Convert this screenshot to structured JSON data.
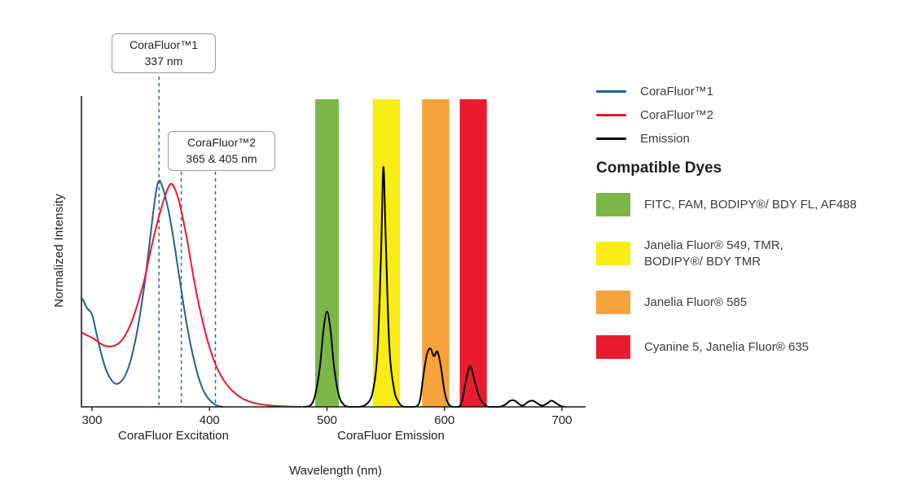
{
  "chart_data": {
    "type": "line",
    "title": "",
    "xlabel": "Wavelength (nm)",
    "ylabel": "Normalized Intensity",
    "x_section_labels": {
      "excitation": "CoraFluor Excitation",
      "emission": "CoraFluor Emission"
    },
    "xlim": [
      300,
      720
    ],
    "ylim": [
      0,
      1
    ],
    "x_ticks": [
      300,
      400,
      500,
      600,
      700
    ],
    "grid": false,
    "legend_position": "right",
    "marker_line_color": "#2d6a9f",
    "annotations": [
      {
        "title": "CoraFluor™1",
        "value": "337 nm",
        "marker_nm": [
          357
        ]
      },
      {
        "title": "CoraFluor™2",
        "value": "365 & 405 nm",
        "marker_nm": [
          376,
          405
        ]
      }
    ],
    "bands": [
      {
        "range_nm": [
          490,
          510
        ],
        "color": "#7ab648",
        "dyes": "FITC, FAM, BODIPY®/ BDY FL, AF488"
      },
      {
        "range_nm": [
          539,
          562
        ],
        "color": "#f7ec13",
        "dyes": "Janelia Fluor® 549, TMR, BODIPY®/ BDY TMR"
      },
      {
        "range_nm": [
          581,
          604
        ],
        "color": "#f6a23a",
        "dyes": "Janelia Fluor® 585"
      },
      {
        "range_nm": [
          613,
          636
        ],
        "color": "#e81c2e",
        "dyes": "Cyanine 5, Janelia Fluor® 635"
      }
    ],
    "series": [
      {
        "name": "CoraFluor™1",
        "color": "#235f94",
        "points": [
          [
            292,
            0.35
          ],
          [
            296,
            0.32
          ],
          [
            300,
            0.3
          ],
          [
            304,
            0.235
          ],
          [
            308,
            0.17
          ],
          [
            312,
            0.12
          ],
          [
            316,
            0.09
          ],
          [
            320,
            0.075
          ],
          [
            324,
            0.08
          ],
          [
            328,
            0.1
          ],
          [
            332,
            0.14
          ],
          [
            336,
            0.2
          ],
          [
            340,
            0.28
          ],
          [
            344,
            0.38
          ],
          [
            348,
            0.5
          ],
          [
            352,
            0.63
          ],
          [
            355,
            0.71
          ],
          [
            357,
            0.735
          ],
          [
            359,
            0.725
          ],
          [
            362,
            0.69
          ],
          [
            366,
            0.62
          ],
          [
            370,
            0.53
          ],
          [
            374,
            0.43
          ],
          [
            378,
            0.33
          ],
          [
            382,
            0.24
          ],
          [
            386,
            0.165
          ],
          [
            390,
            0.105
          ],
          [
            394,
            0.06
          ],
          [
            398,
            0.032
          ],
          [
            402,
            0.015
          ],
          [
            406,
            0.005
          ],
          [
            411,
            0
          ]
        ]
      },
      {
        "name": "CoraFluor™2",
        "color": "#e8192c",
        "points": [
          [
            292,
            0.24
          ],
          [
            296,
            0.232
          ],
          [
            300,
            0.225
          ],
          [
            305,
            0.212
          ],
          [
            310,
            0.2
          ],
          [
            315,
            0.196
          ],
          [
            320,
            0.2
          ],
          [
            325,
            0.215
          ],
          [
            330,
            0.245
          ],
          [
            335,
            0.29
          ],
          [
            340,
            0.35
          ],
          [
            345,
            0.42
          ],
          [
            350,
            0.51
          ],
          [
            355,
            0.59
          ],
          [
            360,
            0.66
          ],
          [
            364,
            0.705
          ],
          [
            367,
            0.725
          ],
          [
            370,
            0.713
          ],
          [
            374,
            0.67
          ],
          [
            378,
            0.6
          ],
          [
            382,
            0.52
          ],
          [
            386,
            0.43
          ],
          [
            390,
            0.35
          ],
          [
            394,
            0.28
          ],
          [
            398,
            0.22
          ],
          [
            402,
            0.17
          ],
          [
            406,
            0.13
          ],
          [
            410,
            0.1
          ],
          [
            415,
            0.071
          ],
          [
            420,
            0.05
          ],
          [
            426,
            0.032
          ],
          [
            432,
            0.02
          ],
          [
            440,
            0.011
          ],
          [
            450,
            0.005
          ],
          [
            462,
            0.002
          ],
          [
            478,
            0
          ]
        ]
      },
      {
        "name": "Emission",
        "color": "#000000",
        "points": [
          [
            480,
            0
          ],
          [
            486,
            0.005
          ],
          [
            490,
            0.04
          ],
          [
            494,
            0.13
          ],
          [
            497,
            0.25
          ],
          [
            500,
            0.31
          ],
          [
            503,
            0.25
          ],
          [
            506,
            0.13
          ],
          [
            510,
            0.04
          ],
          [
            514,
            0.008
          ],
          [
            519,
            0
          ],
          [
            527,
            0
          ],
          [
            534,
            0.01
          ],
          [
            539,
            0.05
          ],
          [
            543,
            0.18
          ],
          [
            546,
            0.5
          ],
          [
            548,
            0.78
          ],
          [
            550,
            0.55
          ],
          [
            553,
            0.2
          ],
          [
            557,
            0.06
          ],
          [
            561,
            0.015
          ],
          [
            566,
            0
          ],
          [
            575,
            0
          ],
          [
            579,
            0.02
          ],
          [
            582,
            0.1
          ],
          [
            585,
            0.17
          ],
          [
            588,
            0.19
          ],
          [
            591,
            0.165
          ],
          [
            594,
            0.18
          ],
          [
            597,
            0.13
          ],
          [
            600,
            0.05
          ],
          [
            603,
            0.012
          ],
          [
            607,
            0
          ],
          [
            612,
            0
          ],
          [
            615,
            0.02
          ],
          [
            618,
            0.08
          ],
          [
            621,
            0.128
          ],
          [
            623,
            0.125
          ],
          [
            626,
            0.08
          ],
          [
            630,
            0.03
          ],
          [
            634,
            0.008
          ],
          [
            638,
            0
          ],
          [
            647,
            0
          ],
          [
            652,
            0.008
          ],
          [
            656,
            0.02
          ],
          [
            660,
            0.02
          ],
          [
            664,
            0.008
          ],
          [
            667,
            0.004
          ],
          [
            671,
            0.016
          ],
          [
            675,
            0.02
          ],
          [
            679,
            0.012
          ],
          [
            683,
            0.004
          ],
          [
            687,
            0.01
          ],
          [
            691,
            0.02
          ],
          [
            695,
            0.012
          ],
          [
            699,
            0.003
          ],
          [
            703,
            0
          ]
        ]
      }
    ]
  },
  "dye_key": {
    "heading": "Compatible Dyes",
    "items": [
      {
        "label": "FITC, FAM, BODIPY®/ BDY FL, AF488",
        "color": "#7ab648"
      },
      {
        "label": "Janelia Fluor® 549, TMR,\nBODIPY®/ BDY TMR",
        "color": "#f7ec13"
      },
      {
        "label": "Janelia Fluor® 585",
        "color": "#f6a23a"
      },
      {
        "label": "Cyanine 5, Janelia Fluor® 635",
        "color": "#e81c2e"
      }
    ]
  }
}
